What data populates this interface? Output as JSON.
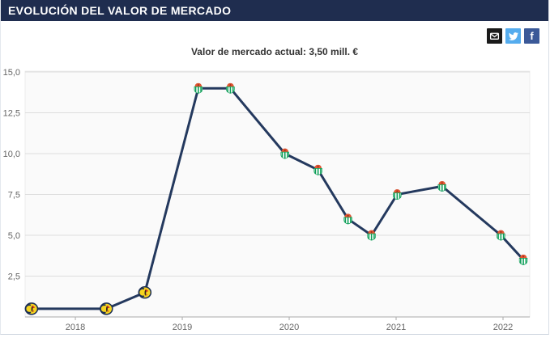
{
  "header": {
    "title": "EVOLUCIÓN DEL VALOR DE MERCADO"
  },
  "share": {
    "facebook_letter": "f"
  },
  "chart": {
    "subtitle": "Valor de mercado actual: 3,50 mill. €"
  },
  "chart_data": {
    "type": "line",
    "title": "Valor de mercado actual: 3,50 mill. €",
    "xlabel": "",
    "ylabel": "mill. €",
    "grid": true,
    "legend": false,
    "x_axis": {
      "ticks": [
        2018,
        2019,
        2020,
        2021,
        2022
      ],
      "range": [
        2017.53,
        2022.25
      ]
    },
    "y_axis": {
      "tick_values": [
        15,
        12.5,
        10,
        7.5,
        5,
        2.5
      ],
      "tick_labels": [
        "15,0",
        "12,5",
        "10,0",
        "7,5",
        "5,0",
        "2,5"
      ],
      "range": [
        0,
        15.05
      ]
    },
    "series": [
      {
        "name": "Valor de mercado",
        "points": [
          {
            "x": 2017.59,
            "value": 0.5,
            "club": "america"
          },
          {
            "x": 2018.29,
            "value": 0.5,
            "club": "america"
          },
          {
            "x": 2018.65,
            "value": 1.5,
            "club": "america"
          },
          {
            "x": 2019.15,
            "value": 14.0,
            "club": "betis"
          },
          {
            "x": 2019.45,
            "value": 14.0,
            "club": "betis"
          },
          {
            "x": 2019.96,
            "value": 10.0,
            "club": "betis"
          },
          {
            "x": 2020.27,
            "value": 9.0,
            "club": "betis"
          },
          {
            "x": 2020.55,
            "value": 6.0,
            "club": "betis"
          },
          {
            "x": 2020.77,
            "value": 5.0,
            "club": "betis"
          },
          {
            "x": 2021.01,
            "value": 7.5,
            "club": "betis"
          },
          {
            "x": 2021.43,
            "value": 8.0,
            "club": "betis"
          },
          {
            "x": 2021.98,
            "value": 5.0,
            "club": "betis"
          },
          {
            "x": 2022.19,
            "value": 3.5,
            "club": "betis"
          }
        ]
      }
    ]
  },
  "colors": {
    "header_bg": "#1f2d4f",
    "line": "#24395e",
    "grid": "#dddddd",
    "axis": "#aaaaaa",
    "tick_text": "#666666",
    "plot_bg": "#fafafa",
    "plot_border": "#ececec",
    "subtitle": "#333333",
    "email_bg": "#1a1a1a",
    "twitter_bg": "#55acee",
    "facebook_bg": "#3b5998"
  }
}
